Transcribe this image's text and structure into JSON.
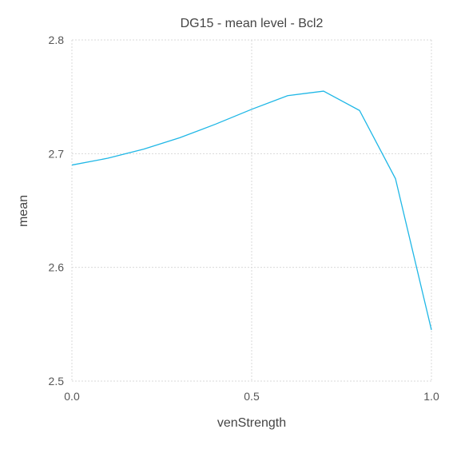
{
  "chart_data": {
    "type": "line",
    "title": "DG15 - mean level - Bcl2",
    "xlabel": "venStrength",
    "ylabel": "mean",
    "xlim": [
      0.0,
      1.0
    ],
    "ylim": [
      2.5,
      2.8
    ],
    "x_ticks": [
      0.0,
      0.5,
      1.0
    ],
    "x_tick_labels": [
      "0.0",
      "0.5",
      "1.0"
    ],
    "y_ticks": [
      2.5,
      2.6,
      2.7,
      2.8
    ],
    "y_tick_labels": [
      "2.5",
      "2.6",
      "2.7",
      "2.8"
    ],
    "grid": true,
    "legend": "none",
    "x": [
      0.0,
      0.1,
      0.2,
      0.3,
      0.4,
      0.5,
      0.6,
      0.7,
      0.8,
      0.9,
      1.0
    ],
    "series": [
      {
        "color": "#1fb7e6",
        "values": [
          2.69,
          2.696,
          2.704,
          2.714,
          2.726,
          2.739,
          2.751,
          2.755,
          2.738,
          2.678,
          2.545
        ]
      }
    ]
  }
}
